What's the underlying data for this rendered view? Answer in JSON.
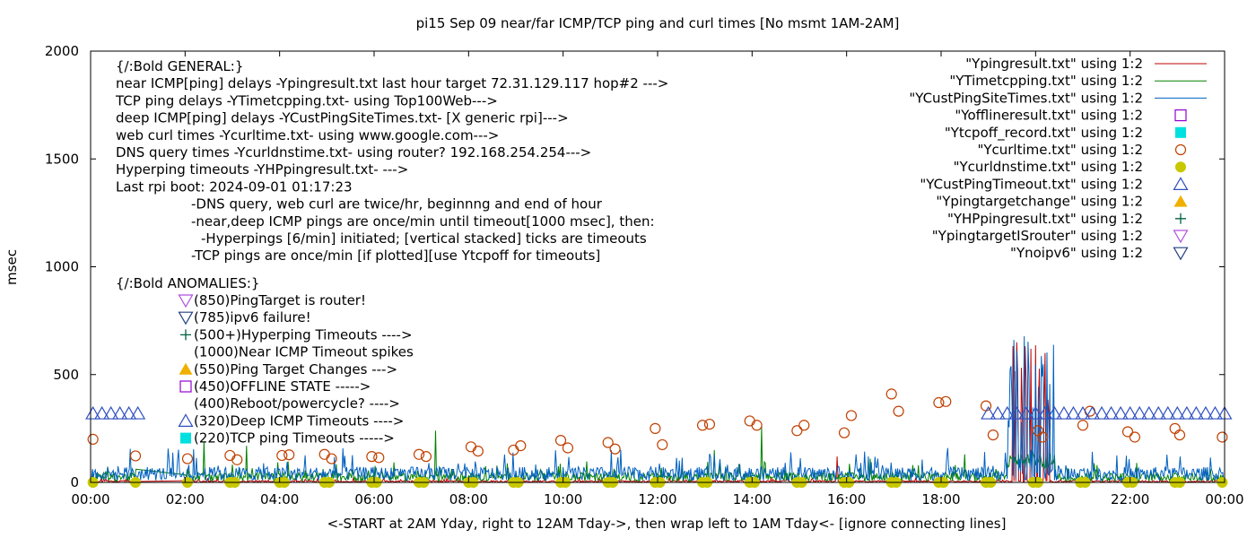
{
  "chart_data": {
    "type": "scatter",
    "title": "pi15 Sep 09  near/far ICMP/TCP ping and curl times [No msmt 1AM-2AM]",
    "xlabel": "<-START at 2AM Yday, right to 12AM Tday->, then wrap left to 1AM Tday<- [ignore connecting lines]",
    "ylabel": "msec",
    "xlim": [
      0,
      24
    ],
    "ylim": [
      0,
      2000
    ],
    "x_tick_labels": [
      "00:00",
      "02:00",
      "04:00",
      "06:00",
      "08:00",
      "10:00",
      "12:00",
      "14:00",
      "16:00",
      "18:00",
      "20:00",
      "22:00",
      "00:00"
    ],
    "y_ticks": [
      0,
      500,
      1000,
      1500,
      2000
    ],
    "legend_position": "top-right",
    "series": [
      {
        "name": "\"Ypingresult.txt\" using 1:2",
        "style": "line",
        "color": "#c00000",
        "typical": 5,
        "spikes": [
          [
            15.8,
            120
          ],
          [
            19.6,
            650
          ],
          [
            19.9,
            620
          ],
          [
            20.2,
            600
          ]
        ]
      },
      {
        "name": "\"YTimetcpping.txt\" using 1:2",
        "style": "line",
        "color": "#008000",
        "typical": 25,
        "spikes": [
          [
            2.4,
            190
          ],
          [
            3.3,
            170
          ],
          [
            7.3,
            240
          ],
          [
            13.2,
            150
          ],
          [
            14.2,
            260
          ],
          [
            16.5,
            110
          ],
          [
            18.5,
            130
          ],
          [
            21.3,
            80
          ]
        ]
      },
      {
        "name": "\"YCustPingSiteTimes.txt\" using 1:2",
        "style": "line",
        "color": "#0060c0",
        "typical": 40,
        "spikes": [
          [
            19.5,
            740
          ],
          [
            19.7,
            720
          ],
          [
            20.0,
            700
          ],
          [
            20.3,
            690
          ]
        ]
      },
      {
        "name": "\"Yofflineresult.txt\" using 1:2",
        "style": "open-square",
        "color": "#9400d3",
        "points": []
      },
      {
        "name": "\"Ytcpoff_record.txt\" using 1:2",
        "style": "filled-square",
        "color": "#00e0e0",
        "points": []
      },
      {
        "name": "\"Ycurltime.txt\" using 1:2",
        "style": "open-circle",
        "color": "#c04000",
        "points": [
          [
            0.05,
            200
          ],
          [
            0.95,
            123
          ],
          [
            2.05,
            110
          ],
          [
            2.95,
            125
          ],
          [
            3.1,
            105
          ],
          [
            4.05,
            125
          ],
          [
            4.2,
            128
          ],
          [
            4.95,
            130
          ],
          [
            5.1,
            110
          ],
          [
            5.95,
            120
          ],
          [
            6.1,
            115
          ],
          [
            6.95,
            130
          ],
          [
            7.1,
            120
          ],
          [
            8.05,
            165
          ],
          [
            8.2,
            145
          ],
          [
            8.95,
            150
          ],
          [
            9.1,
            170
          ],
          [
            9.95,
            195
          ],
          [
            10.1,
            160
          ],
          [
            10.95,
            185
          ],
          [
            11.1,
            155
          ],
          [
            11.95,
            250
          ],
          [
            12.1,
            175
          ],
          [
            12.95,
            265
          ],
          [
            13.1,
            270
          ],
          [
            13.95,
            285
          ],
          [
            14.1,
            265
          ],
          [
            14.95,
            240
          ],
          [
            15.1,
            265
          ],
          [
            15.95,
            230
          ],
          [
            16.1,
            310
          ],
          [
            16.95,
            410
          ],
          [
            17.1,
            330
          ],
          [
            17.95,
            370
          ],
          [
            18.1,
            375
          ],
          [
            18.95,
            355
          ],
          [
            19.1,
            220
          ],
          [
            20.05,
            240
          ],
          [
            20.15,
            210
          ],
          [
            21.0,
            265
          ],
          [
            21.15,
            330
          ],
          [
            21.95,
            235
          ],
          [
            22.1,
            210
          ],
          [
            22.95,
            250
          ],
          [
            23.05,
            220
          ],
          [
            23.95,
            210
          ]
        ]
      },
      {
        "name": "\"Ycurldnstime.txt\" using 1:2",
        "style": "filled-circle",
        "color": "#c8c800",
        "points": [
          [
            0.05,
            0
          ],
          [
            0.95,
            0
          ],
          [
            2.05,
            0
          ],
          [
            2.95,
            0
          ],
          [
            3.05,
            0
          ],
          [
            4.0,
            0
          ],
          [
            4.1,
            0
          ],
          [
            4.95,
            0
          ],
          [
            5.05,
            0
          ],
          [
            5.95,
            0
          ],
          [
            6.05,
            0
          ],
          [
            6.95,
            0
          ],
          [
            7.05,
            0
          ],
          [
            8.0,
            0
          ],
          [
            8.1,
            0
          ],
          [
            8.95,
            0
          ],
          [
            9.05,
            0
          ],
          [
            9.95,
            0
          ],
          [
            10.05,
            0
          ],
          [
            10.95,
            0
          ],
          [
            11.05,
            0
          ],
          [
            11.95,
            0
          ],
          [
            12.05,
            0
          ],
          [
            12.95,
            0
          ],
          [
            13.05,
            0
          ],
          [
            13.95,
            0
          ],
          [
            14.05,
            0
          ],
          [
            14.95,
            0
          ],
          [
            15.05,
            0
          ],
          [
            15.95,
            0
          ],
          [
            16.05,
            0
          ],
          [
            16.95,
            0
          ],
          [
            17.05,
            0
          ],
          [
            17.95,
            0
          ],
          [
            18.05,
            0
          ],
          [
            18.95,
            0
          ],
          [
            19.05,
            0
          ],
          [
            19.95,
            0
          ],
          [
            20.05,
            0
          ],
          [
            20.95,
            0
          ],
          [
            21.05,
            0
          ],
          [
            21.95,
            0
          ],
          [
            22.05,
            0
          ],
          [
            22.95,
            0
          ],
          [
            23.05,
            0
          ],
          [
            23.95,
            0
          ]
        ]
      },
      {
        "name": "\"YCustPingTimeout.txt\" using 1:2",
        "style": "open-triangle-up",
        "color": "#3050c0",
        "value": 320,
        "x_ranges": [
          [
            0.05,
            1.0
          ],
          [
            19.0,
            24.0
          ]
        ]
      },
      {
        "name": "\"Ypingtargetchange\" using 1:2",
        "style": "filled-triangle-up",
        "color": "#f0b000",
        "points": []
      },
      {
        "name": "\"YHPpingresult.txt\" using 1:2",
        "style": "plus",
        "color": "#006040",
        "points": []
      },
      {
        "name": "\"YpingtargetISrouter\" using 1:2",
        "style": "open-triangle-down",
        "color": "#b050e0",
        "points": []
      },
      {
        "name": "\"Ynoipv6\" using 1:2",
        "style": "open-triangle-down",
        "color": "#204080",
        "points": []
      }
    ],
    "annotations": {
      "general": [
        "{/:Bold GENERAL:}",
        "near ICMP[ping] delays -Ypingresult.txt last hour target 72.31.129.117 hop#2 --->",
        "TCP ping delays -YTimetcpping.txt- using Top100Web--->",
        "deep ICMP[ping] delays -YCustPingSiteTimes.txt- [X generic rpi]--->",
        "web curl times -Ycurltime.txt- using www.google.com--->",
        "DNS query times -Ycurldnstime.txt- using router? 192.168.254.254--->",
        "Hyperping timeouts -YHPpingresult.txt- --->",
        "Last rpi boot: 2024-09-01 01:17:23",
        "-DNS query, web curl are twice/hr, beginnng and end of hour",
        "-near,deep ICMP pings are once/min until timeout[1000 msec], then:",
        "-Hyperpings [6/min] initiated; [vertical stacked] ticks are timeouts",
        "-TCP pings are once/min [if plotted][use Ytcpoff for timeouts]"
      ],
      "anomalies_heading": "{/:Bold ANOMALIES:}",
      "anomalies": [
        {
          "symbol": "open-triangle-down",
          "color": "#b050e0",
          "text": "(850)PingTarget is router!"
        },
        {
          "symbol": "open-triangle-down",
          "color": "#204080",
          "text": "(785)ipv6 failure!"
        },
        {
          "symbol": "plus",
          "color": "#006040",
          "text": "(500+)Hyperping Timeouts ---->"
        },
        {
          "symbol": "none",
          "color": "#000000",
          "text": "(1000)Near ICMP Timeout spikes"
        },
        {
          "symbol": "filled-triangle-up",
          "color": "#f0b000",
          "text": "(550)Ping Target Changes --->"
        },
        {
          "symbol": "open-square",
          "color": "#9400d3",
          "text": "(450)OFFLINE STATE ----->"
        },
        {
          "symbol": "none",
          "color": "#000000",
          "text": "(400)Reboot/powercycle? ---->"
        },
        {
          "symbol": "open-triangle-up",
          "color": "#3050c0",
          "text": "(320)Deep ICMP Timeouts ---->"
        },
        {
          "symbol": "filled-square",
          "color": "#00e0e0",
          "text": "(220)TCP ping Timeouts ----->"
        }
      ]
    }
  }
}
